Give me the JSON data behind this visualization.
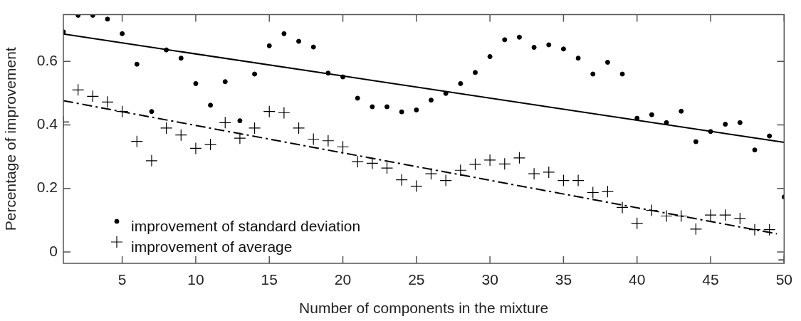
{
  "chart_data": {
    "type": "scatter",
    "xlabel": "Number of components in the mixture",
    "ylabel": "Percentage of improvement",
    "xlim": [
      1,
      50
    ],
    "xticks": [
      5,
      10,
      15,
      20,
      25,
      30,
      35,
      40,
      45,
      50
    ],
    "ylim": [
      -0.036,
      0.747
    ],
    "yticks": [
      0,
      0.2,
      0.4,
      0.6
    ],
    "grid": false,
    "legend": "bottom left",
    "x": [
      1,
      2,
      3,
      4,
      5,
      6,
      7,
      8,
      9,
      10,
      11,
      12,
      13,
      14,
      15,
      16,
      17,
      18,
      19,
      20,
      21,
      22,
      23,
      24,
      25,
      26,
      27,
      28,
      29,
      30,
      31,
      32,
      33,
      34,
      35,
      36,
      37,
      38,
      39,
      40,
      41,
      42,
      43,
      44,
      45,
      46,
      47,
      48,
      49,
      50
    ],
    "series": [
      {
        "name": "improvement of standard deviation",
        "type": "scatter",
        "marker": "circle",
        "color": "#000000",
        "values": [
          0.693,
          0.745,
          0.745,
          0.733,
          0.687,
          0.591,
          0.442,
          0.636,
          0.61,
          0.53,
          0.462,
          0.536,
          0.413,
          0.56,
          0.649,
          0.687,
          0.663,
          0.645,
          0.563,
          0.551,
          0.484,
          0.457,
          0.457,
          0.441,
          0.447,
          0.478,
          0.499,
          0.53,
          0.565,
          0.615,
          0.668,
          0.676,
          0.644,
          0.652,
          0.639,
          0.61,
          0.56,
          0.597,
          0.56,
          0.421,
          0.432,
          0.407,
          0.443,
          0.347,
          0.379,
          0.402,
          0.407,
          0.321,
          0.365,
          0.173
        ]
      },
      {
        "name": "improvement of average",
        "type": "scatter",
        "marker": "cross",
        "color": "#000000",
        "values": [
          0.409,
          0.51,
          0.49,
          0.472,
          0.442,
          0.348,
          0.287,
          0.39,
          0.368,
          0.326,
          0.338,
          0.407,
          0.358,
          0.39,
          0.442,
          0.438,
          0.39,
          0.355,
          0.35,
          0.331,
          0.284,
          0.279,
          0.264,
          0.227,
          0.207,
          0.246,
          0.225,
          0.257,
          0.276,
          0.289,
          0.277,
          0.296,
          0.246,
          0.251,
          0.225,
          0.225,
          0.187,
          0.19,
          0.14,
          0.09,
          0.131,
          0.113,
          0.113,
          0.072,
          0.116,
          0.116,
          0.105,
          0.07,
          0.07,
          -0.025
        ]
      },
      {
        "type": "line",
        "marker": "none",
        "line_style": "solid",
        "color": "#000000",
        "x": [
          1,
          50
        ],
        "values": [
          0.686,
          0.345
        ]
      },
      {
        "type": "line",
        "marker": "none",
        "line_style": "dashed",
        "color": "#000000",
        "x": [
          1,
          49.5
        ],
        "values": [
          0.476,
          0.057
        ]
      }
    ]
  }
}
